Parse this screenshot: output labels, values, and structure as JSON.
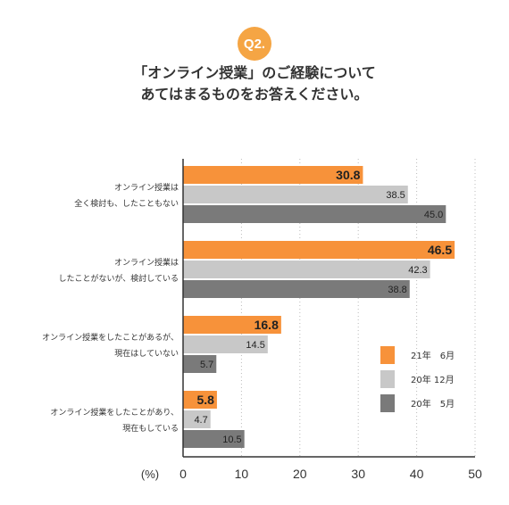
{
  "question_badge": "Q2.",
  "title_lines": [
    "「オンライン授業」のご経験について",
    "あてはまるものをお答えください。"
  ],
  "chart_data": {
    "type": "bar",
    "orientation": "horizontal",
    "categories": [
      [
        "オンライン授業は",
        "全く検討も、したこともない"
      ],
      [
        "オンライン授業は",
        "したことがないが、検討している"
      ],
      [
        "オンライン授業をしたことがあるが、",
        "現在はしていない"
      ],
      [
        "オンライン授業をしたことがあり、",
        "現在もしている"
      ]
    ],
    "series": [
      {
        "name": "21年　6月",
        "color": "#f7923a",
        "values": [
          30.8,
          46.5,
          16.8,
          5.8
        ]
      },
      {
        "name": "20年 12月",
        "color": "#c8c8c8",
        "values": [
          38.5,
          42.3,
          14.5,
          4.7
        ]
      },
      {
        "name": "20年　5月",
        "color": "#7a7a7a",
        "values": [
          45.0,
          38.8,
          5.7,
          10.5
        ]
      }
    ],
    "xlabel": "(%)",
    "xlim": [
      0,
      50
    ],
    "xticks": [
      0,
      10,
      20,
      30,
      40,
      50
    ],
    "grid": "vertical dotted",
    "legend_position": "right"
  }
}
